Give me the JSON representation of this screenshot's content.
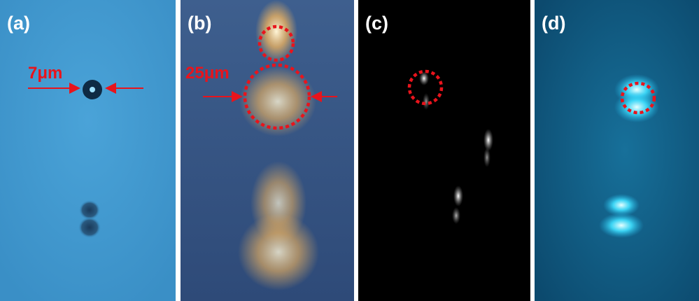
{
  "panels": [
    {
      "label": "(a)",
      "scale_label": "7μm"
    },
    {
      "label": "(b)",
      "scale_label": "25μm"
    },
    {
      "label": "(c)"
    },
    {
      "label": "(d)"
    }
  ]
}
